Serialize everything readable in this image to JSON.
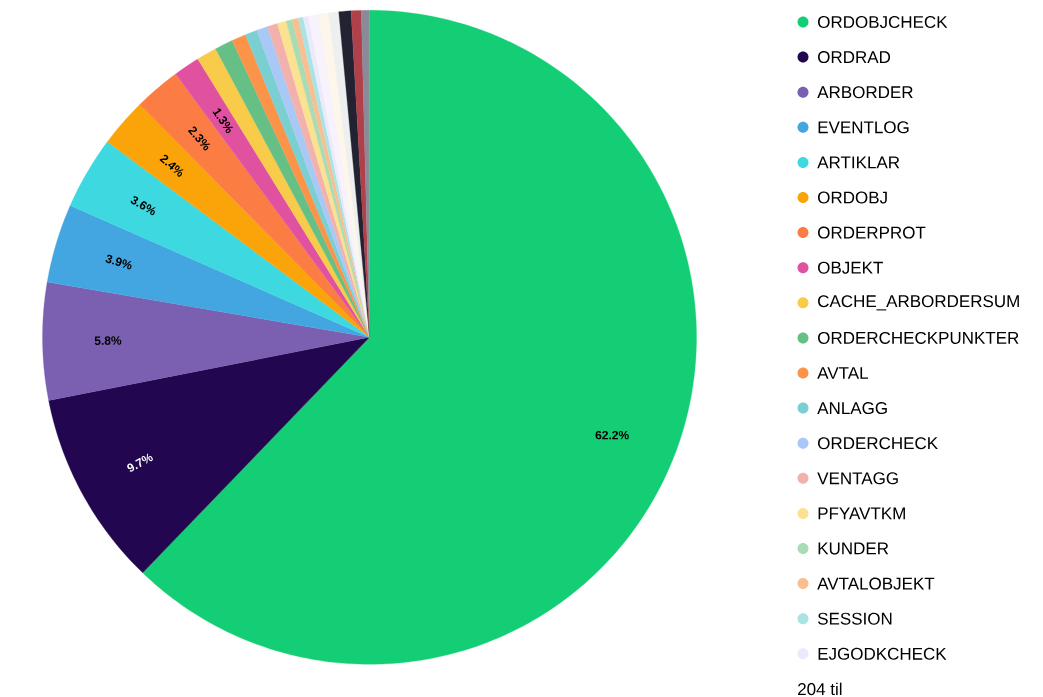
{
  "chart_data": {
    "type": "pie",
    "legend": "right",
    "categories": [
      "ORDOBJCHECK",
      "ORDRAD",
      "ARBORDER",
      "EVENTLOG",
      "ARTIKLAR",
      "ORDOBJ",
      "ORDERPROT",
      "OBJEKT",
      "CACHE_ARBORDERSUM",
      "ORDERCHECKPUNKTER",
      "AVTAL",
      "ANLAGG",
      "ORDERCHECK",
      "VENTAGG",
      "PFYAVTKM",
      "KUNDER",
      "AVTALOBJEKT",
      "SESSION",
      "EJGODKCHECK",
      null,
      null,
      null,
      null,
      null,
      null
    ],
    "values": [
      62.2,
      9.7,
      5.8,
      3.9,
      3.6,
      2.4,
      2.3,
      1.3,
      1.0,
      0.9,
      0.7,
      0.6,
      0.55,
      0.5,
      0.45,
      0.3,
      0.3,
      0.25,
      0.25,
      0.5,
      0.5,
      0.5,
      0.6,
      0.5,
      0.4
    ],
    "colors": [
      "#13ce74",
      "#22064f",
      "#7b5fb0",
      "#43a6e0",
      "#3ed8e0",
      "#fba40a",
      "#fb7d44",
      "#e052a0",
      "#f9cb4a",
      "#66bf85",
      "#fb9448",
      "#79cfd2",
      "#a9c8f5",
      "#f3b1ae",
      "#fbe190",
      "#a8dcb5",
      "#f9bf90",
      "#a9e3e4",
      "#e9ebfc",
      "#f7f2fb",
      "#fdf6ea",
      "#eef0f0",
      "#222233",
      "#b0404a",
      "#8a8a9a"
    ],
    "value_labels": [
      "62.2%",
      "9.7%",
      "5.8%",
      "3.9%",
      "3.6%",
      "2.4%",
      "2.3%",
      "1.3%",
      null,
      null,
      null,
      null,
      null,
      null,
      null,
      null,
      null,
      null,
      null,
      null,
      null,
      null,
      null,
      null,
      null
    ],
    "annotations": [
      "204 til"
    ]
  }
}
